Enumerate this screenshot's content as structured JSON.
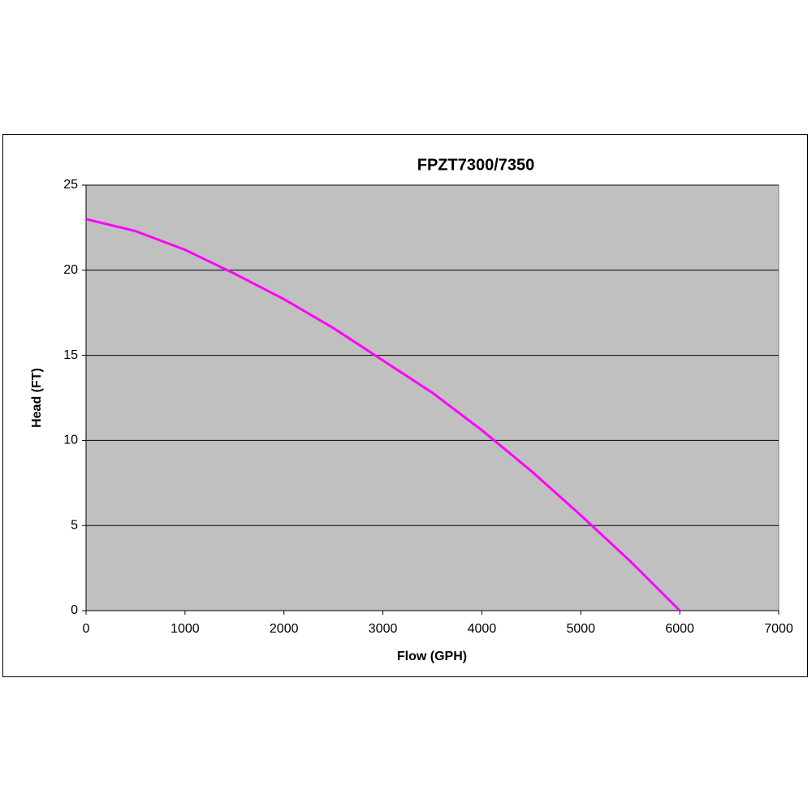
{
  "chart_data": {
    "type": "line",
    "title": "FPZT7300/7350",
    "x_label": "Flow (GPH)",
    "y_label": "Head (FT)",
    "x": [
      0,
      500,
      1000,
      1500,
      2000,
      2500,
      3000,
      3500,
      4000,
      4500,
      5000,
      5500,
      6000
    ],
    "series": [
      {
        "name": "Head",
        "color": "#ff00ff",
        "values": [
          23,
          22.3,
          21.2,
          19.8,
          18.3,
          16.6,
          14.7,
          12.8,
          10.6,
          8.2,
          5.6,
          2.9,
          0
        ]
      }
    ],
    "xlim": [
      0,
      7000
    ],
    "xticks": [
      0,
      1000,
      2000,
      3000,
      4000,
      5000,
      6000,
      7000
    ],
    "ylim": [
      0,
      25
    ],
    "yticks": [
      0,
      5,
      10,
      15,
      20,
      25
    ],
    "grid": true,
    "plot_background": "#c0c0c0"
  }
}
